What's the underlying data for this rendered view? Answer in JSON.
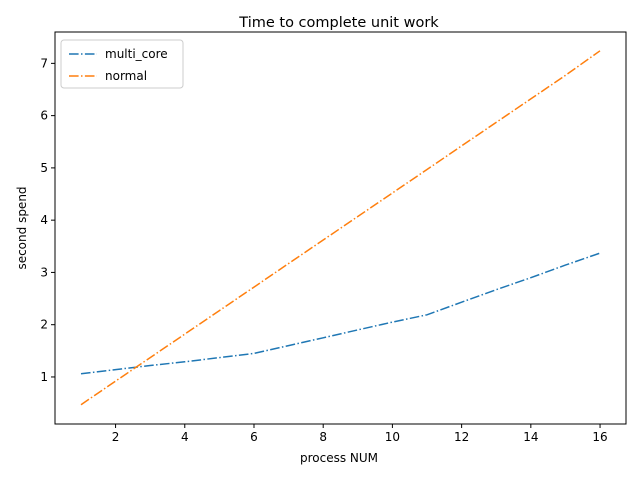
{
  "chart_data": {
    "type": "line",
    "title": "Time to complete unit work",
    "xlabel": "process NUM",
    "ylabel": "second spend",
    "xlim": [
      0.25,
      16.75
    ],
    "ylim": [
      0.1,
      7.6
    ],
    "xticks": [
      2,
      4,
      6,
      8,
      10,
      12,
      14,
      16
    ],
    "yticks": [
      1,
      2,
      3,
      4,
      5,
      6,
      7
    ],
    "grid": false,
    "legend_position": "upper-left",
    "series": [
      {
        "name": "multi_core",
        "color": "#1f77b4",
        "linestyle": "dashdot",
        "x": [
          1,
          2,
          3,
          4,
          5,
          6,
          7,
          8,
          9,
          10,
          11,
          12,
          13,
          14,
          15,
          16
        ],
        "y": [
          1.06,
          1.14,
          1.22,
          1.29,
          1.37,
          1.45,
          1.6,
          1.75,
          1.9,
          2.05,
          2.19,
          2.43,
          2.67,
          2.9,
          3.14,
          3.37
        ]
      },
      {
        "name": "normal",
        "color": "#ff7f0e",
        "linestyle": "dashdot",
        "x": [
          1,
          2,
          3,
          4,
          5,
          6,
          7,
          8,
          9,
          10,
          11,
          12,
          13,
          14,
          15,
          16
        ],
        "y": [
          0.47,
          0.92,
          1.37,
          1.82,
          2.27,
          2.72,
          3.17,
          3.62,
          4.07,
          4.52,
          4.97,
          5.42,
          5.87,
          6.32,
          6.77,
          7.24
        ]
      }
    ]
  }
}
